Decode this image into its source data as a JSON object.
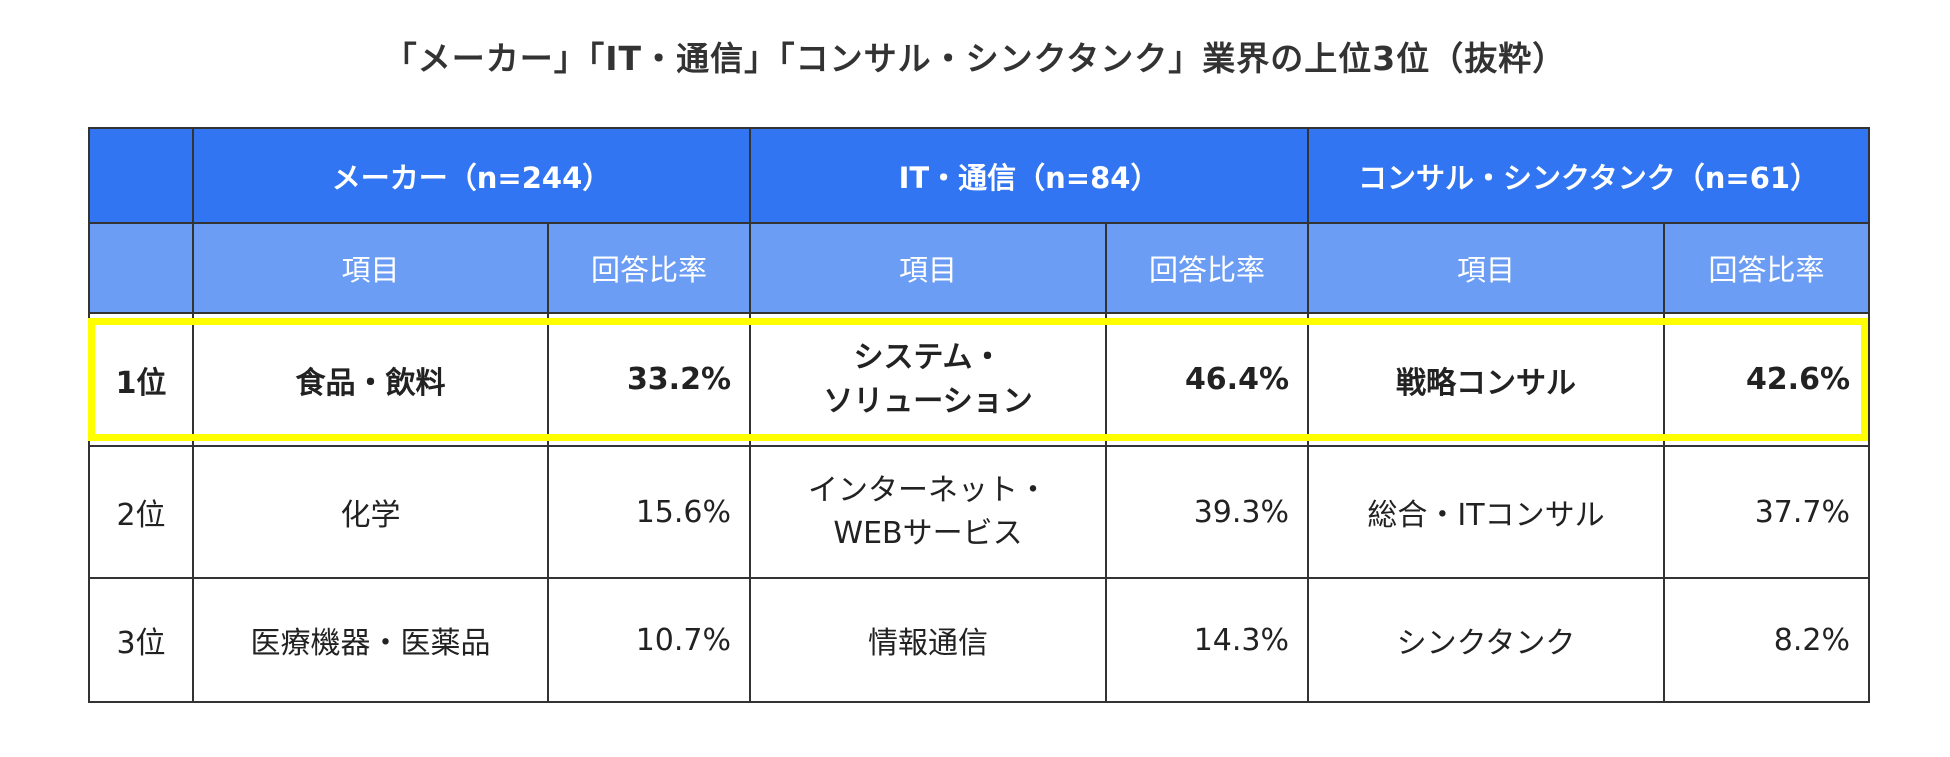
{
  "title": "「メーカー」「IT・通信」「コンサル・シンクタンク」業界の上位3位（抜粋）",
  "colors": {
    "group_header_bg": "#3175f2",
    "sub_header_bg": "#6c9df4",
    "highlight_border": "#ffff00",
    "grid": "#333333"
  },
  "chart_data": {
    "type": "table",
    "groups": [
      {
        "name": "メーカー（n=244）",
        "item_header": "項目",
        "rate_header": "回答比率"
      },
      {
        "name": "IT・通信（n=84）",
        "item_header": "項目",
        "rate_header": "回答比率"
      },
      {
        "name": "コンサル・シンクタンク（n=61）",
        "item_header": "項目",
        "rate_header": "回答比率"
      }
    ],
    "rows": [
      {
        "rank": "1位",
        "cells": [
          {
            "item": "食品・飲料",
            "rate": "33.2%"
          },
          {
            "item": "システム・\nソリューション",
            "rate": "46.4%"
          },
          {
            "item": "戦略コンサル",
            "rate": "42.6%"
          }
        ]
      },
      {
        "rank": "2位",
        "cells": [
          {
            "item": "化学",
            "rate": "15.6%"
          },
          {
            "item": "インターネット・\nWEBサービス",
            "rate": "39.3%"
          },
          {
            "item": "総合・ITコンサル",
            "rate": "37.7%"
          }
        ]
      },
      {
        "rank": "3位",
        "cells": [
          {
            "item": "医療機器・医薬品",
            "rate": "10.7%"
          },
          {
            "item": "情報通信",
            "rate": "14.3%"
          },
          {
            "item": "シンクタンク",
            "rate": "8.2%"
          }
        ]
      }
    ]
  }
}
